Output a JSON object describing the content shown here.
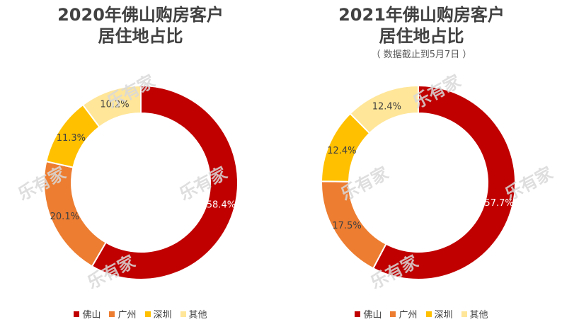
{
  "watermark": "乐有家",
  "colors": {
    "佛山": "#C00000",
    "广州": "#ED7D31",
    "深圳": "#FFC000",
    "其他": "#FFE699"
  },
  "chart_data": [
    {
      "type": "pie",
      "title_line1": "2020年佛山购房客户",
      "title_line2": "居住地占比",
      "subtitle": "",
      "legend_position": "bottom",
      "categories": [
        "佛山",
        "广州",
        "深圳",
        "其他"
      ],
      "values": [
        58.4,
        20.1,
        11.3,
        10.2
      ],
      "labels": [
        "58.4%",
        "20.1%",
        "11.3%",
        "10.2%"
      ]
    },
    {
      "type": "pie",
      "title_line1": "2021年佛山购房客户",
      "title_line2": "居住地占比",
      "subtitle": "（ 数据截止到5月7日 ）",
      "legend_position": "bottom",
      "categories": [
        "佛山",
        "广州",
        "深圳",
        "其他"
      ],
      "values": [
        57.7,
        17.5,
        12.4,
        12.4
      ],
      "labels": [
        "57.7%",
        "17.5%",
        "12.4%",
        "12.4%"
      ]
    }
  ]
}
